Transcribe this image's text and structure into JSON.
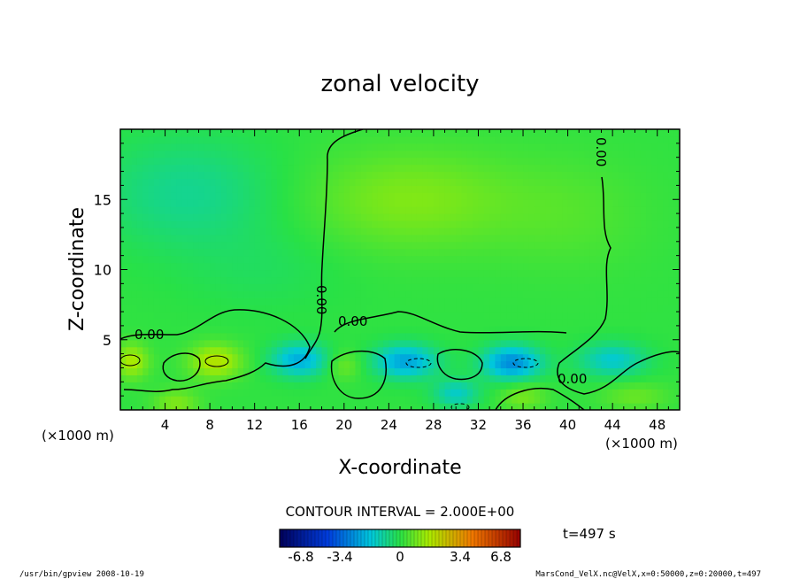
{
  "chart_data": {
    "type": "heatmap",
    "title": "zonal velocity",
    "xlabel": "X-coordinate",
    "ylabel": "Z-coordinate",
    "x_unit": "(×1000 m)",
    "y_unit": "(×1000 m)",
    "xlim": [
      0,
      50
    ],
    "ylim": [
      0,
      20
    ],
    "x_ticks": [
      "4",
      "8",
      "12",
      "16",
      "20",
      "24",
      "28",
      "32",
      "36",
      "40",
      "44",
      "48"
    ],
    "x_tick_values": [
      4,
      8,
      12,
      16,
      20,
      24,
      28,
      32,
      36,
      40,
      44,
      48
    ],
    "y_ticks": [
      "5",
      "10",
      "15"
    ],
    "y_tick_values": [
      5,
      10,
      15
    ],
    "contour_interval_text": "CONTOUR INTERVAL = 2.000E+00",
    "contour_labels": [
      "0.00",
      "0.00",
      "0.00",
      "0.00",
      "0.00"
    ],
    "time_label": "t=497 s",
    "colorbar": {
      "tick_labels": [
        "-6.8",
        "-3.4",
        "0",
        "3.4",
        "6.8"
      ],
      "tick_values": [
        -6.8,
        -3.4,
        0,
        3.4,
        6.8
      ],
      "range": [
        -6.8,
        6.8
      ]
    },
    "field_blobs": [
      {
        "x": 6,
        "z": 15.5,
        "value": -0.9,
        "sx": 8,
        "sz": 4
      },
      {
        "x": 26,
        "z": 15,
        "value": 1.0,
        "sx": 9,
        "sz": 3.5
      },
      {
        "x": 40,
        "z": 14,
        "value": 0.4,
        "sx": 7,
        "sz": 4
      },
      {
        "x": 13,
        "z": 10,
        "value": -0.3,
        "sx": 7,
        "sz": 3
      },
      {
        "x": 1,
        "z": 3.5,
        "value": 1.6,
        "sx": 1.5,
        "sz": 1.2
      },
      {
        "x": 8.5,
        "z": 3.5,
        "value": 1.8,
        "sx": 2.3,
        "sz": 1.2
      },
      {
        "x": 5,
        "z": 0.5,
        "value": 1.0,
        "sx": 2,
        "sz": 1
      },
      {
        "x": 16,
        "z": 3.6,
        "value": -2.2,
        "sx": 2.5,
        "sz": 1.2
      },
      {
        "x": 20,
        "z": 3.2,
        "value": 0.8,
        "sx": 1.5,
        "sz": 1
      },
      {
        "x": 25.5,
        "z": 3.5,
        "value": -2.4,
        "sx": 2.8,
        "sz": 1.2
      },
      {
        "x": 30,
        "z": 1.2,
        "value": -1.5,
        "sx": 2,
        "sz": 1
      },
      {
        "x": 35,
        "z": 3.4,
        "value": -2.8,
        "sx": 2.6,
        "sz": 1.2
      },
      {
        "x": 44,
        "z": 3.6,
        "value": -1.6,
        "sx": 3,
        "sz": 1.2
      },
      {
        "x": 36,
        "z": 1.0,
        "value": 0.9,
        "sx": 2,
        "sz": 1
      },
      {
        "x": 46,
        "z": 1.0,
        "value": 0.7,
        "sx": 3,
        "sz": 1
      }
    ]
  },
  "footer": {
    "left": "/usr/bin/gpview   2008-10-19",
    "right": "MarsCond_VelX.nc@VelX,x=0:50000,z=0:20000,t=497"
  }
}
